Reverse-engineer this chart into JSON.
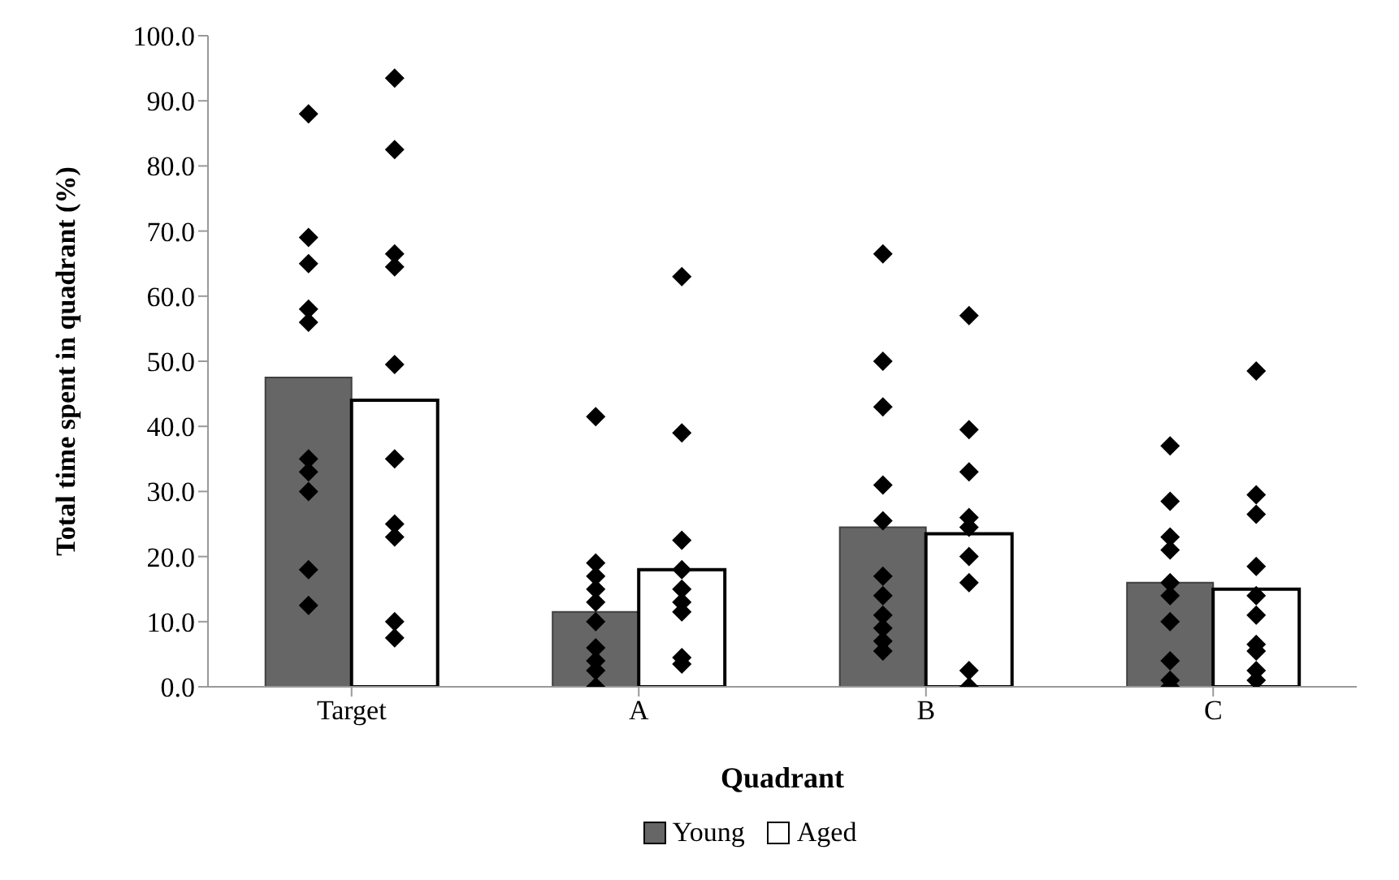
{
  "chart_data": {
    "type": "bar",
    "xlabel": "Quadrant",
    "ylabel": "Total time spent in quadrant (%)",
    "categories": [
      "Target",
      "A",
      "B",
      "C"
    ],
    "series": [
      {
        "name": "Young",
        "color": "#666666",
        "values": [
          47.5,
          11.5,
          24.5,
          16
        ]
      },
      {
        "name": "Aged",
        "color": "#ffffff",
        "values": [
          44,
          18,
          23.5,
          15
        ]
      },
      {
        "type": "scatter",
        "color": "#000000",
        "x": [
          "Target",
          "Target",
          "Target",
          "Target",
          "Target",
          "Target",
          "Target",
          "Target",
          "Target",
          "Target",
          "A",
          "A",
          "A",
          "A",
          "A",
          "A",
          "A",
          "A",
          "A",
          "A",
          "B",
          "B",
          "B",
          "B",
          "B",
          "B",
          "B",
          "B",
          "B",
          "B",
          "B",
          "C",
          "C",
          "C",
          "C",
          "C",
          "C",
          "C",
          "C",
          "C",
          "C"
        ],
        "values": [
          88,
          69,
          65,
          58,
          56,
          35,
          33,
          30,
          18,
          12.5,
          41.5,
          19,
          17,
          15,
          13,
          10,
          6,
          4,
          2.5,
          0,
          66.5,
          50,
          43,
          31,
          25.5,
          17,
          14,
          11,
          9,
          7,
          5.5,
          37,
          28.5,
          23,
          21,
          16,
          14,
          10,
          4,
          1,
          0
        ]
      },
      {
        "type": "scatter",
        "color": "#000000",
        "x": [
          "Target",
          "Target",
          "Target",
          "Target",
          "Target",
          "Target",
          "Target",
          "Target",
          "Target",
          "Target",
          "A",
          "A",
          "A",
          "A",
          "A",
          "A",
          "A",
          "A",
          "A",
          "B",
          "B",
          "B",
          "B",
          "B",
          "B",
          "B",
          "B",
          "B",
          "C",
          "C",
          "C",
          "C",
          "C",
          "C",
          "C",
          "C",
          "C",
          "C"
        ],
        "values": [
          93.5,
          82.5,
          66.5,
          64.5,
          49.5,
          35,
          25,
          23,
          10,
          7.5,
          63,
          39,
          22.5,
          18,
          15,
          13,
          11.5,
          4.5,
          3.5,
          57,
          39.5,
          33,
          26,
          24.5,
          20,
          16,
          2.5,
          0,
          48.5,
          29.5,
          26.5,
          18.5,
          14,
          11,
          6.5,
          5.5,
          2.5,
          1
        ]
      }
    ],
    "ylim": [
      0,
      100
    ],
    "yticks": [
      {
        "value": 0,
        "label": "0.0"
      },
      {
        "value": 10,
        "label": "10.0"
      },
      {
        "value": 20,
        "label": "20.0"
      },
      {
        "value": 30,
        "label": "30.0"
      },
      {
        "value": 40,
        "label": "40.0"
      },
      {
        "value": 50,
        "label": "50.0"
      },
      {
        "value": 60,
        "label": "60.0"
      },
      {
        "value": 70,
        "label": "70.0"
      },
      {
        "value": 80,
        "label": "80.0"
      },
      {
        "value": 90,
        "label": "90.0"
      },
      {
        "value": 100,
        "label": "100.0"
      }
    ],
    "grid": false,
    "legend": "bottom",
    "marker": "diamond"
  }
}
